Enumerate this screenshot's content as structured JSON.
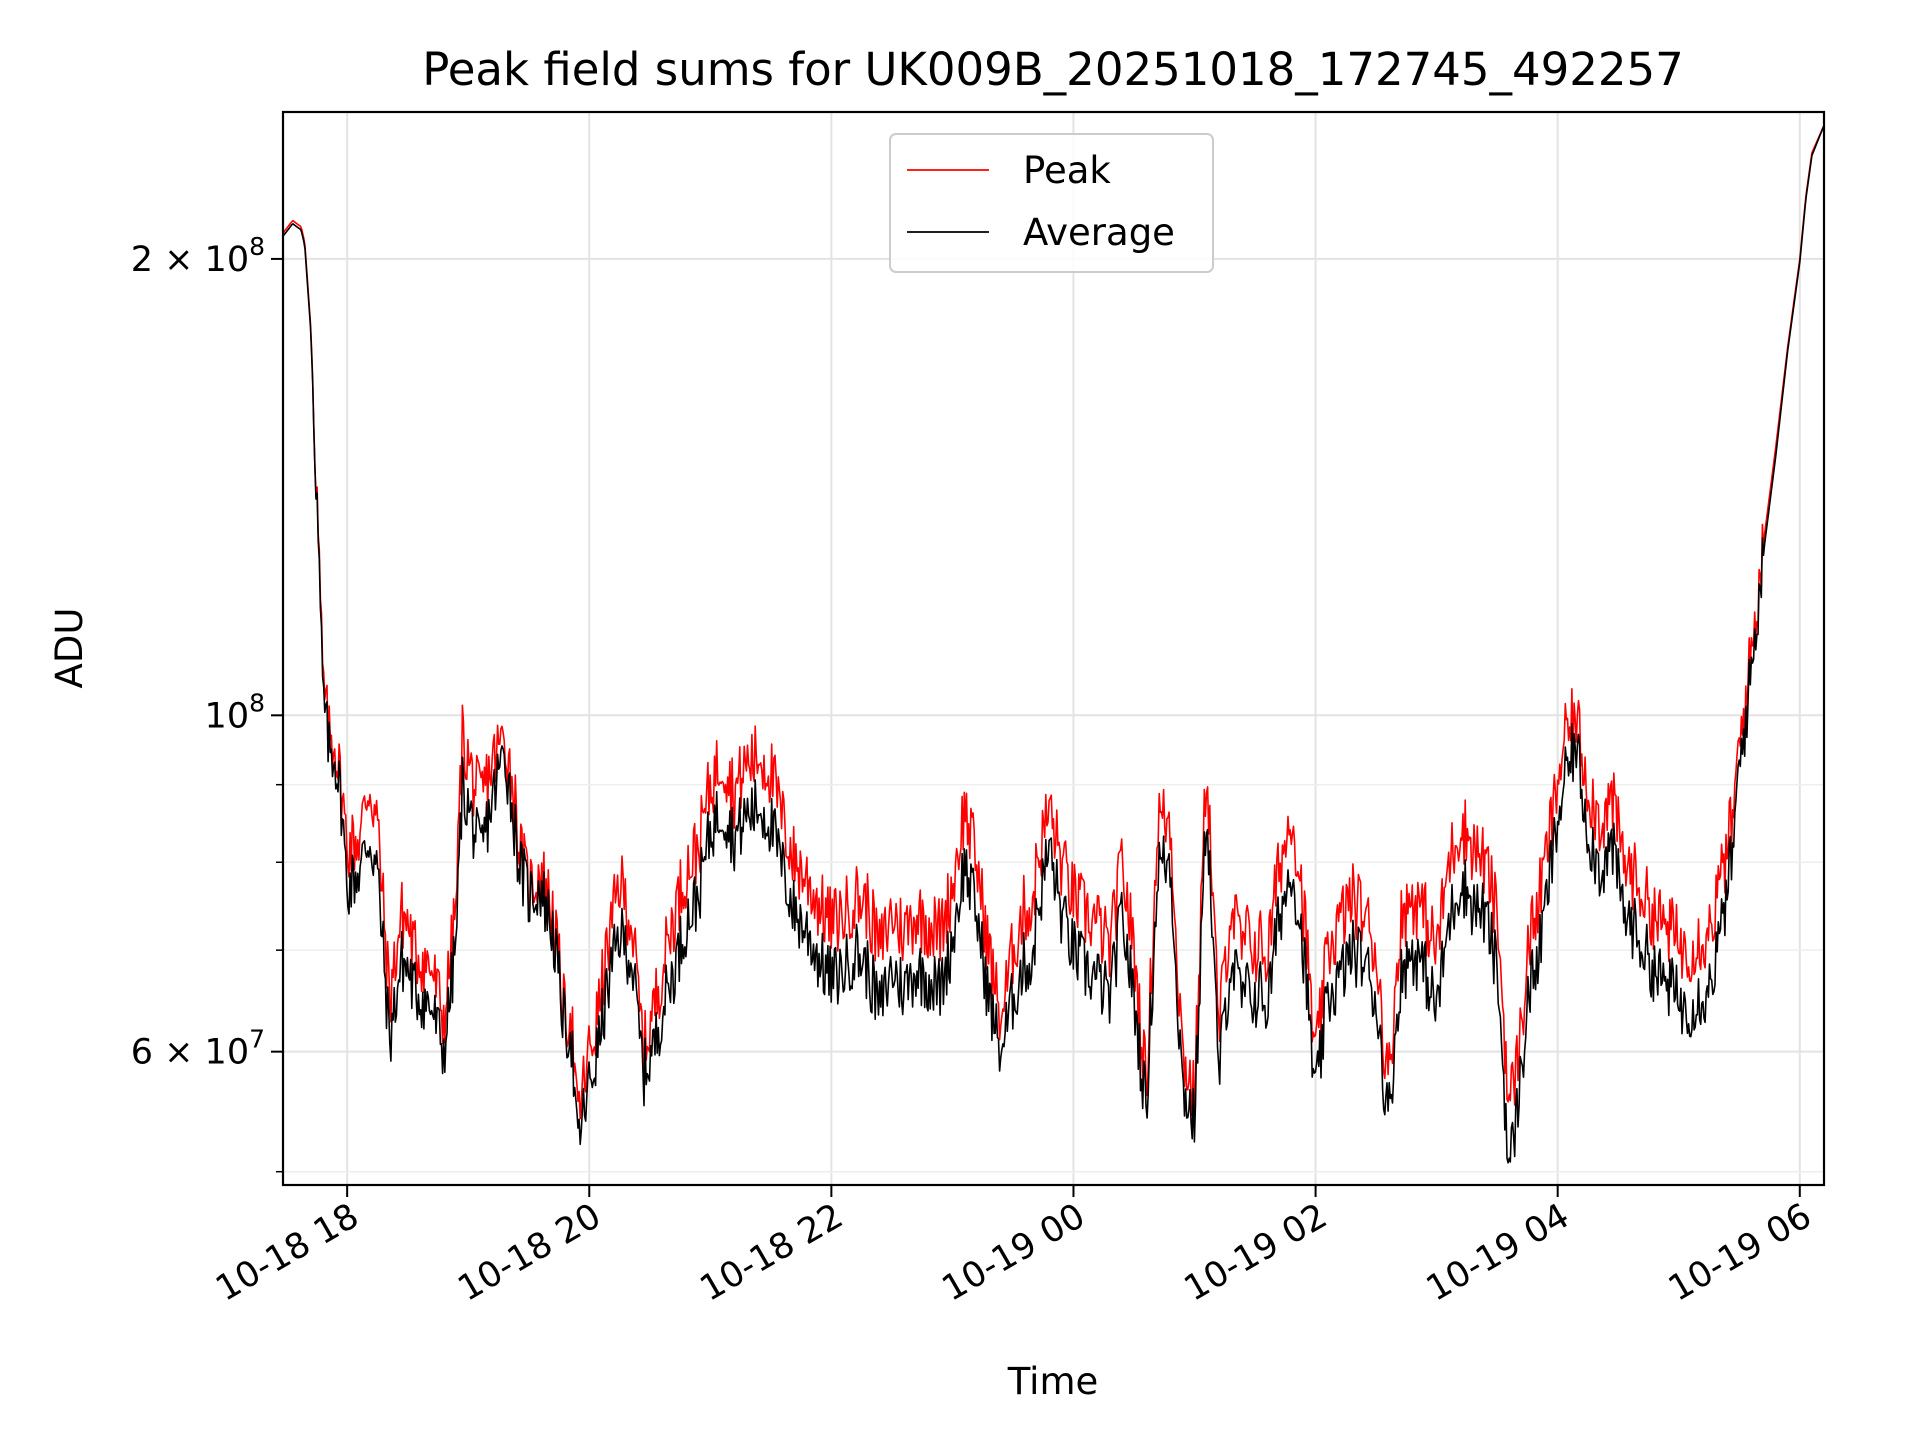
{
  "chart_data": {
    "type": "line",
    "title": "Peak field sums for UK009B_20251018_172745_492257",
    "xlabel": "Time",
    "ylabel": "ADU",
    "yscale": "log",
    "ylim": [
      49000000,
      250000000
    ],
    "xlim_hours": [
      17.47,
      30.2
    ],
    "x_unit": "hours since 2025-10-18 00:00",
    "grid": true,
    "legend_position": "top-center",
    "x_ticks": [
      {
        "value": 18,
        "label": "10-18 18"
      },
      {
        "value": 20,
        "label": "10-18 20"
      },
      {
        "value": 22,
        "label": "10-18 22"
      },
      {
        "value": 24,
        "label": "10-19 00"
      },
      {
        "value": 26,
        "label": "10-19 02"
      },
      {
        "value": 28,
        "label": "10-19 04"
      },
      {
        "value": 30,
        "label": "10-19 06"
      }
    ],
    "y_ticks": [
      {
        "value": 200000000,
        "base": "2 × 10",
        "exp": "8"
      },
      {
        "value": 100000000,
        "base": "10",
        "exp": "8"
      },
      {
        "value": 60000000,
        "base": "6 × 10",
        "exp": "7"
      }
    ],
    "y_minor_ticks": [
      50000000,
      70000000,
      80000000,
      90000000
    ],
    "series": [
      {
        "name": "Peak",
        "color": "#ff0000",
        "x": [
          17.47,
          17.55,
          17.62,
          17.65,
          17.7,
          17.75,
          17.8,
          17.85,
          17.9,
          17.95,
          18.0,
          18.1,
          18.18,
          18.25,
          18.35,
          18.45,
          18.5,
          18.55,
          18.7,
          18.8,
          18.9,
          18.95,
          19.05,
          19.1,
          19.2,
          19.3,
          19.38,
          19.42,
          19.5,
          19.6,
          19.7,
          19.8,
          19.85,
          19.9,
          20.0,
          20.05,
          20.15,
          20.25,
          20.35,
          20.45,
          20.55,
          20.6,
          20.7,
          20.8,
          20.9,
          21.0,
          21.1,
          21.2,
          21.3,
          21.4,
          21.5,
          21.6,
          21.7,
          21.8,
          21.9,
          22.0,
          22.1,
          22.2,
          22.3,
          22.4,
          22.5,
          22.6,
          22.7,
          22.8,
          22.9,
          23.0,
          23.1,
          23.2,
          23.3,
          23.4,
          23.5,
          23.6,
          23.65,
          23.7,
          23.8,
          23.9,
          24.0,
          24.1,
          24.2,
          24.3,
          24.4,
          24.5,
          24.6,
          24.7,
          24.8,
          24.9,
          25.0,
          25.1,
          25.2,
          25.3,
          25.4,
          25.45,
          25.5,
          25.55,
          25.6,
          25.7,
          25.75,
          25.8,
          25.9,
          26.0,
          26.1,
          26.2,
          26.3,
          26.4,
          26.5,
          26.6,
          26.7,
          26.8,
          26.9,
          27.0,
          27.1,
          27.2,
          27.3,
          27.4,
          27.5,
          27.6,
          27.7,
          27.75,
          27.85,
          27.95,
          28.05,
          28.15,
          28.25,
          28.35,
          28.45,
          28.55,
          28.65,
          28.75,
          28.85,
          28.95,
          29.05,
          29.15,
          29.25,
          29.35,
          29.45,
          29.5,
          29.6,
          29.7,
          29.8,
          29.9,
          30.0,
          30.05,
          30.1,
          30.2
        ],
        "values": [
          208000000,
          212000000,
          210000000,
          205000000,
          180000000,
          140000000,
          105000000,
          97000000,
          96000000,
          90000000,
          82000000,
          83000000,
          90000000,
          85000000,
          65000000,
          74000000,
          73000000,
          70000000,
          68000000,
          63000000,
          75000000,
          97000000,
          90000000,
          88000000,
          93000000,
          97000000,
          89000000,
          82000000,
          77000000,
          79000000,
          74000000,
          63000000,
          64000000,
          54000000,
          60000000,
          62000000,
          70000000,
          78000000,
          73000000,
          60000000,
          65000000,
          68000000,
          74000000,
          79000000,
          82000000,
          90000000,
          94000000,
          89000000,
          93000000,
          94000000,
          92000000,
          85000000,
          80000000,
          78000000,
          75000000,
          73000000,
          74000000,
          76000000,
          75000000,
          70000000,
          74000000,
          72000000,
          74000000,
          73000000,
          72000000,
          77000000,
          87000000,
          80000000,
          70000000,
          63000000,
          70000000,
          75000000,
          74000000,
          80000000,
          87000000,
          80000000,
          76000000,
          74000000,
          73000000,
          70000000,
          80000000,
          70000000,
          57000000,
          86000000,
          85000000,
          60000000,
          56000000,
          94000000,
          62000000,
          75000000,
          70000000,
          72000000,
          70000000,
          71000000,
          69000000,
          80000000,
          82000000,
          87000000,
          75000000,
          59000000,
          70000000,
          73000000,
          76000000,
          74000000,
          70000000,
          57000000,
          73000000,
          76000000,
          74000000,
          70000000,
          80000000,
          85000000,
          82000000,
          80000000,
          74000000,
          55000000,
          62000000,
          70000000,
          76000000,
          85000000,
          96000000,
          100000000,
          90000000,
          85000000,
          88000000,
          80000000,
          78000000,
          75000000,
          73000000,
          72000000,
          70000000,
          71000000,
          72000000,
          78000000,
          86000000,
          95000000,
          110000000,
          130000000,
          150000000,
          175000000,
          200000000,
          220000000,
          235000000,
          245000000
        ]
      },
      {
        "name": "Average",
        "color": "#000000",
        "x": [
          17.47,
          17.55,
          17.62,
          17.65,
          17.7,
          17.75,
          17.8,
          17.85,
          17.9,
          17.95,
          18.0,
          18.1,
          18.18,
          18.25,
          18.35,
          18.45,
          18.5,
          18.55,
          18.7,
          18.8,
          18.9,
          18.95,
          19.05,
          19.1,
          19.2,
          19.3,
          19.38,
          19.42,
          19.5,
          19.6,
          19.7,
          19.8,
          19.85,
          19.9,
          20.0,
          20.05,
          20.15,
          20.25,
          20.35,
          20.45,
          20.55,
          20.6,
          20.7,
          20.8,
          20.9,
          21.0,
          21.1,
          21.2,
          21.3,
          21.4,
          21.5,
          21.6,
          21.7,
          21.8,
          21.9,
          22.0,
          22.1,
          22.2,
          22.3,
          22.4,
          22.5,
          22.6,
          22.7,
          22.8,
          22.9,
          23.0,
          23.1,
          23.2,
          23.3,
          23.4,
          23.5,
          23.6,
          23.65,
          23.7,
          23.8,
          23.9,
          24.0,
          24.1,
          24.2,
          24.3,
          24.4,
          24.5,
          24.6,
          24.7,
          24.8,
          24.9,
          25.0,
          25.1,
          25.2,
          25.3,
          25.4,
          25.45,
          25.5,
          25.55,
          25.6,
          25.7,
          25.75,
          25.8,
          25.9,
          26.0,
          26.1,
          26.2,
          26.3,
          26.4,
          26.5,
          26.6,
          26.7,
          26.8,
          26.9,
          27.0,
          27.1,
          27.2,
          27.3,
          27.4,
          27.5,
          27.6,
          27.7,
          27.75,
          27.85,
          27.95,
          28.05,
          28.15,
          28.25,
          28.35,
          28.45,
          28.55,
          28.65,
          28.75,
          28.85,
          28.95,
          29.05,
          29.15,
          29.25,
          29.35,
          29.45,
          29.5,
          29.6,
          29.7,
          29.8,
          29.9,
          30.0,
          30.05,
          30.1,
          30.2
        ],
        "values": [
          207000000,
          211000000,
          209000000,
          204000000,
          179000000,
          139000000,
          103000000,
          95000000,
          94000000,
          88000000,
          77000000,
          79000000,
          83000000,
          79000000,
          61000000,
          69000000,
          68000000,
          66000000,
          64000000,
          60000000,
          71000000,
          90000000,
          84000000,
          81000000,
          88000000,
          95000000,
          85000000,
          80000000,
          76000000,
          77000000,
          72000000,
          62000000,
          62000000,
          52000000,
          57000000,
          59000000,
          66000000,
          72000000,
          69000000,
          58000000,
          61000000,
          64000000,
          68000000,
          73000000,
          76000000,
          84000000,
          87000000,
          83000000,
          86000000,
          87000000,
          85000000,
          79000000,
          74000000,
          72000000,
          69000000,
          67000000,
          68000000,
          70000000,
          68000000,
          64000000,
          68000000,
          66000000,
          68000000,
          67000000,
          66000000,
          71000000,
          80000000,
          74000000,
          65000000,
          60000000,
          65000000,
          69000000,
          68000000,
          74000000,
          82000000,
          74000000,
          70000000,
          68000000,
          67000000,
          65000000,
          74000000,
          65000000,
          55000000,
          80000000,
          80000000,
          57000000,
          54000000,
          88000000,
          58000000,
          69000000,
          65000000,
          66000000,
          65000000,
          66000000,
          64000000,
          74000000,
          76000000,
          80000000,
          70000000,
          56000000,
          65000000,
          67000000,
          70000000,
          69000000,
          65000000,
          54000000,
          67000000,
          70000000,
          68000000,
          64000000,
          73000000,
          78000000,
          75000000,
          74000000,
          68000000,
          50000000,
          58000000,
          65000000,
          70000000,
          80000000,
          90000000,
          96000000,
          84000000,
          79000000,
          82000000,
          74000000,
          72000000,
          69000000,
          67000000,
          66000000,
          64000000,
          65000000,
          66000000,
          72000000,
          82000000,
          92000000,
          107000000,
          128000000,
          148000000,
          174000000,
          199000000,
          219000000,
          234000000,
          245000000
        ]
      }
    ]
  }
}
